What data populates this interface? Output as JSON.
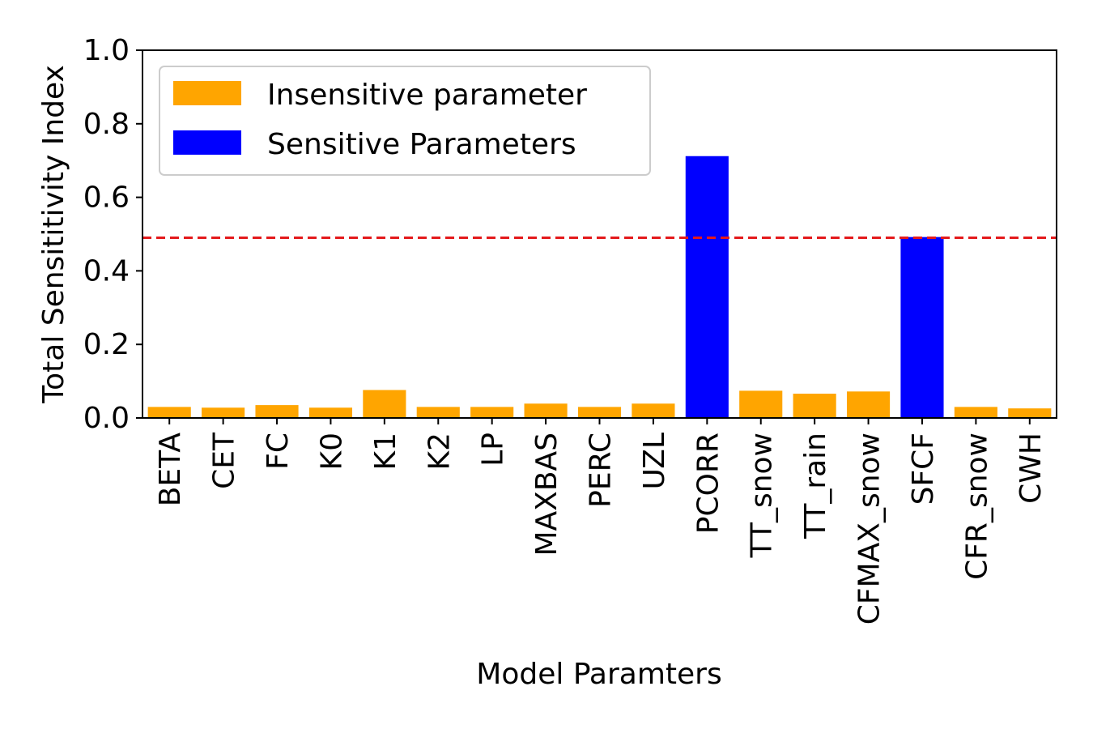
{
  "chart_data": {
    "type": "bar",
    "title": "",
    "xlabel": "Model Paramters",
    "ylabel": "Total Sensititivity Index",
    "ylim": [
      0,
      1.0
    ],
    "yticks": [
      "0.0",
      "0.2",
      "0.4",
      "0.6",
      "0.8",
      "1.0"
    ],
    "threshold": 0.49,
    "categories": [
      "BETA",
      "CET",
      "FC",
      "K0",
      "K1",
      "K2",
      "LP",
      "MAXBAS",
      "PERC",
      "UZL",
      "PCORR",
      "TT_snow",
      "TT_rain",
      "CFMAX_snow",
      "SFCF",
      "CFR_snow",
      "CWH"
    ],
    "values": [
      0.03,
      0.028,
      0.035,
      0.028,
      0.076,
      0.03,
      0.03,
      0.039,
      0.03,
      0.039,
      0.712,
      0.074,
      0.066,
      0.072,
      0.492,
      0.03,
      0.026
    ],
    "sensitive": [
      false,
      false,
      false,
      false,
      false,
      false,
      false,
      false,
      false,
      false,
      true,
      false,
      false,
      false,
      true,
      false,
      false
    ],
    "legend": [
      {
        "label": "Insensitive parameter",
        "color": "#ffa500"
      },
      {
        "label": "Sensitive Parameters",
        "color": "#0000ff"
      }
    ],
    "legend_position": "top-left",
    "colors": {
      "insensitive": "#ffa500",
      "sensitive": "#0000ff",
      "threshold": "#e41a1c",
      "label_insensitive": "#808080",
      "label_sensitive": "#000000"
    },
    "grid": false
  }
}
